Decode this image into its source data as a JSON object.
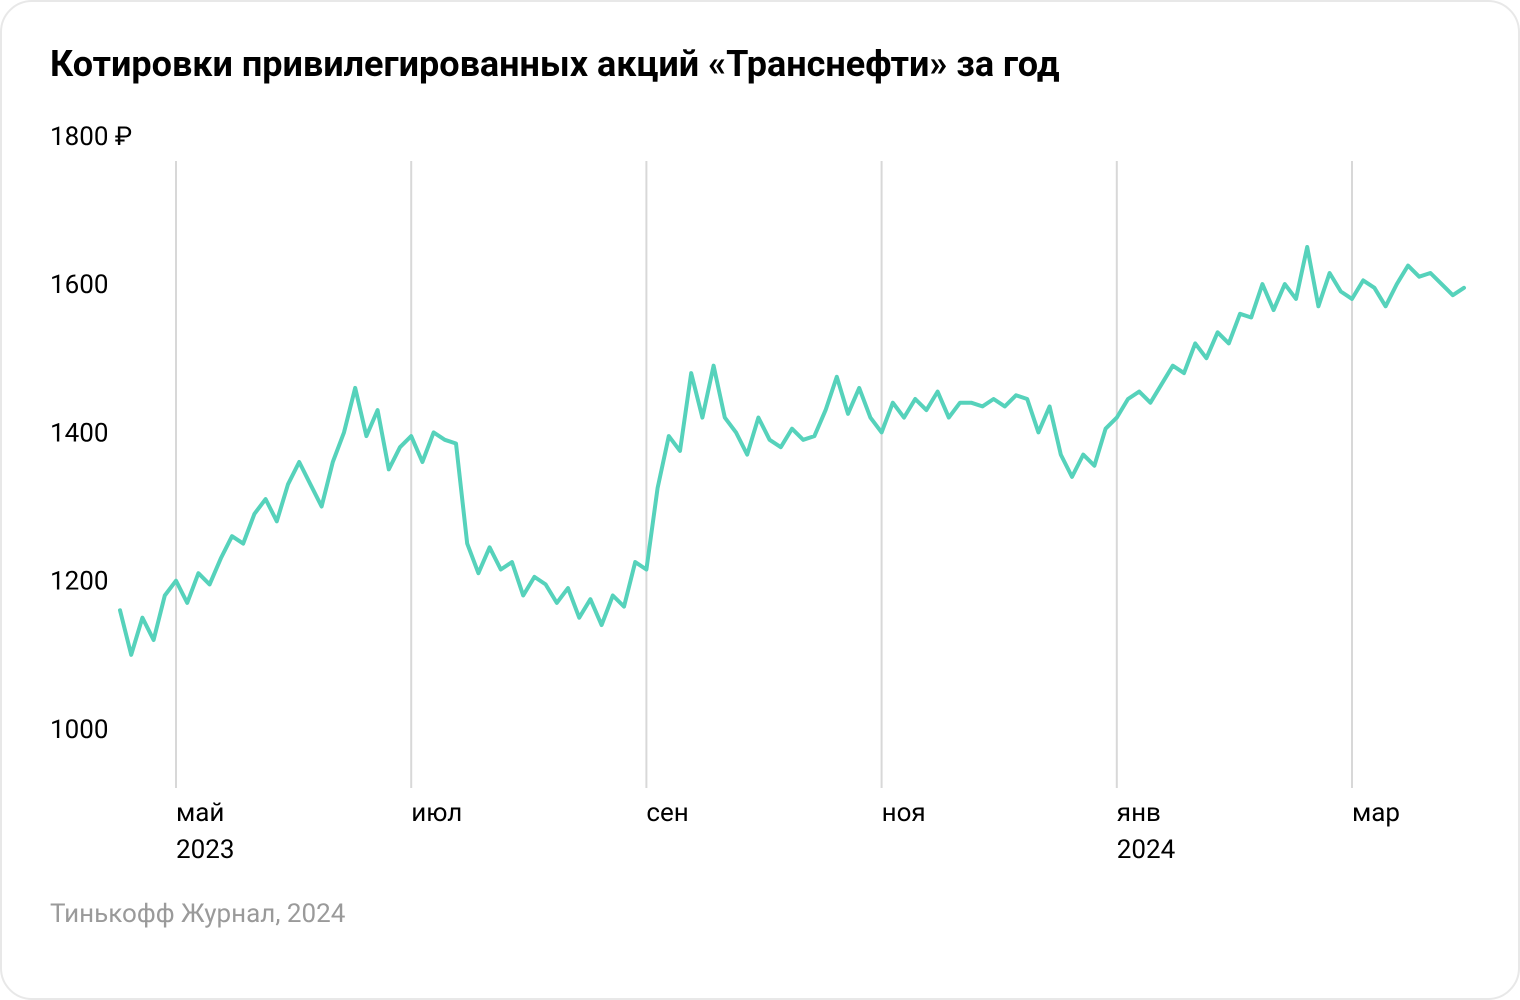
{
  "title": "Котировки привилегированных акций «Транснефти» за год",
  "footer": "Тинькофф Журнал, 2024",
  "chart": {
    "type": "line",
    "line_color": "#56d2bb",
    "line_width": 4,
    "background_color": "#ffffff",
    "grid_color": "#d8d8d8",
    "text_color": "#000000",
    "footer_color": "#9a9a9a",
    "label_fontsize": 26,
    "title_fontsize": 36,
    "y": {
      "min": 950,
      "max": 1820,
      "ticks": [
        1000,
        1200,
        1400,
        1600,
        1800
      ],
      "tick_labels": [
        "1000",
        "1200",
        "1400",
        "1600",
        "1800 ₽"
      ]
    },
    "x": {
      "min": 0,
      "max": 240,
      "ticks": [
        {
          "pos": 10,
          "label": "май",
          "year": "2023"
        },
        {
          "pos": 52,
          "label": "июл",
          "year": ""
        },
        {
          "pos": 94,
          "label": "сен",
          "year": ""
        },
        {
          "pos": 136,
          "label": "ноя",
          "year": ""
        },
        {
          "pos": 178,
          "label": "янв",
          "year": "2024"
        },
        {
          "pos": 220,
          "label": "мар",
          "year": ""
        }
      ]
    },
    "series": [
      {
        "x": 0,
        "y": 1160
      },
      {
        "x": 2,
        "y": 1100
      },
      {
        "x": 4,
        "y": 1150
      },
      {
        "x": 6,
        "y": 1120
      },
      {
        "x": 8,
        "y": 1180
      },
      {
        "x": 10,
        "y": 1200
      },
      {
        "x": 12,
        "y": 1170
      },
      {
        "x": 14,
        "y": 1210
      },
      {
        "x": 16,
        "y": 1195
      },
      {
        "x": 18,
        "y": 1230
      },
      {
        "x": 20,
        "y": 1260
      },
      {
        "x": 22,
        "y": 1250
      },
      {
        "x": 24,
        "y": 1290
      },
      {
        "x": 26,
        "y": 1310
      },
      {
        "x": 28,
        "y": 1280
      },
      {
        "x": 30,
        "y": 1330
      },
      {
        "x": 32,
        "y": 1360
      },
      {
        "x": 34,
        "y": 1330
      },
      {
        "x": 36,
        "y": 1300
      },
      {
        "x": 38,
        "y": 1360
      },
      {
        "x": 40,
        "y": 1400
      },
      {
        "x": 42,
        "y": 1460
      },
      {
        "x": 44,
        "y": 1395
      },
      {
        "x": 46,
        "y": 1430
      },
      {
        "x": 48,
        "y": 1350
      },
      {
        "x": 50,
        "y": 1380
      },
      {
        "x": 52,
        "y": 1395
      },
      {
        "x": 54,
        "y": 1360
      },
      {
        "x": 56,
        "y": 1400
      },
      {
        "x": 58,
        "y": 1390
      },
      {
        "x": 60,
        "y": 1385
      },
      {
        "x": 62,
        "y": 1250
      },
      {
        "x": 64,
        "y": 1210
      },
      {
        "x": 66,
        "y": 1245
      },
      {
        "x": 68,
        "y": 1215
      },
      {
        "x": 70,
        "y": 1225
      },
      {
        "x": 72,
        "y": 1180
      },
      {
        "x": 74,
        "y": 1205
      },
      {
        "x": 76,
        "y": 1195
      },
      {
        "x": 78,
        "y": 1170
      },
      {
        "x": 80,
        "y": 1190
      },
      {
        "x": 82,
        "y": 1150
      },
      {
        "x": 84,
        "y": 1175
      },
      {
        "x": 86,
        "y": 1140
      },
      {
        "x": 88,
        "y": 1180
      },
      {
        "x": 90,
        "y": 1165
      },
      {
        "x": 92,
        "y": 1225
      },
      {
        "x": 94,
        "y": 1215
      },
      {
        "x": 96,
        "y": 1325
      },
      {
        "x": 98,
        "y": 1395
      },
      {
        "x": 100,
        "y": 1375
      },
      {
        "x": 102,
        "y": 1480
      },
      {
        "x": 104,
        "y": 1420
      },
      {
        "x": 106,
        "y": 1490
      },
      {
        "x": 108,
        "y": 1420
      },
      {
        "x": 110,
        "y": 1400
      },
      {
        "x": 112,
        "y": 1370
      },
      {
        "x": 114,
        "y": 1420
      },
      {
        "x": 116,
        "y": 1390
      },
      {
        "x": 118,
        "y": 1380
      },
      {
        "x": 120,
        "y": 1405
      },
      {
        "x": 122,
        "y": 1390
      },
      {
        "x": 124,
        "y": 1395
      },
      {
        "x": 126,
        "y": 1430
      },
      {
        "x": 128,
        "y": 1475
      },
      {
        "x": 130,
        "y": 1425
      },
      {
        "x": 132,
        "y": 1460
      },
      {
        "x": 134,
        "y": 1420
      },
      {
        "x": 136,
        "y": 1400
      },
      {
        "x": 138,
        "y": 1440
      },
      {
        "x": 140,
        "y": 1420
      },
      {
        "x": 142,
        "y": 1445
      },
      {
        "x": 144,
        "y": 1430
      },
      {
        "x": 146,
        "y": 1455
      },
      {
        "x": 148,
        "y": 1420
      },
      {
        "x": 150,
        "y": 1440
      },
      {
        "x": 152,
        "y": 1440
      },
      {
        "x": 154,
        "y": 1435
      },
      {
        "x": 156,
        "y": 1445
      },
      {
        "x": 158,
        "y": 1435
      },
      {
        "x": 160,
        "y": 1450
      },
      {
        "x": 162,
        "y": 1445
      },
      {
        "x": 164,
        "y": 1400
      },
      {
        "x": 166,
        "y": 1435
      },
      {
        "x": 168,
        "y": 1370
      },
      {
        "x": 170,
        "y": 1340
      },
      {
        "x": 172,
        "y": 1370
      },
      {
        "x": 174,
        "y": 1355
      },
      {
        "x": 176,
        "y": 1405
      },
      {
        "x": 178,
        "y": 1420
      },
      {
        "x": 180,
        "y": 1445
      },
      {
        "x": 182,
        "y": 1455
      },
      {
        "x": 184,
        "y": 1440
      },
      {
        "x": 186,
        "y": 1465
      },
      {
        "x": 188,
        "y": 1490
      },
      {
        "x": 190,
        "y": 1480
      },
      {
        "x": 192,
        "y": 1520
      },
      {
        "x": 194,
        "y": 1500
      },
      {
        "x": 196,
        "y": 1535
      },
      {
        "x": 198,
        "y": 1520
      },
      {
        "x": 200,
        "y": 1560
      },
      {
        "x": 202,
        "y": 1555
      },
      {
        "x": 204,
        "y": 1600
      },
      {
        "x": 206,
        "y": 1565
      },
      {
        "x": 208,
        "y": 1600
      },
      {
        "x": 210,
        "y": 1580
      },
      {
        "x": 212,
        "y": 1650
      },
      {
        "x": 214,
        "y": 1570
      },
      {
        "x": 216,
        "y": 1615
      },
      {
        "x": 218,
        "y": 1590
      },
      {
        "x": 220,
        "y": 1580
      },
      {
        "x": 222,
        "y": 1605
      },
      {
        "x": 224,
        "y": 1595
      },
      {
        "x": 226,
        "y": 1570
      },
      {
        "x": 228,
        "y": 1600
      },
      {
        "x": 230,
        "y": 1625
      },
      {
        "x": 232,
        "y": 1610
      },
      {
        "x": 234,
        "y": 1615
      },
      {
        "x": 236,
        "y": 1600
      },
      {
        "x": 238,
        "y": 1585
      },
      {
        "x": 240,
        "y": 1595
      }
    ]
  }
}
